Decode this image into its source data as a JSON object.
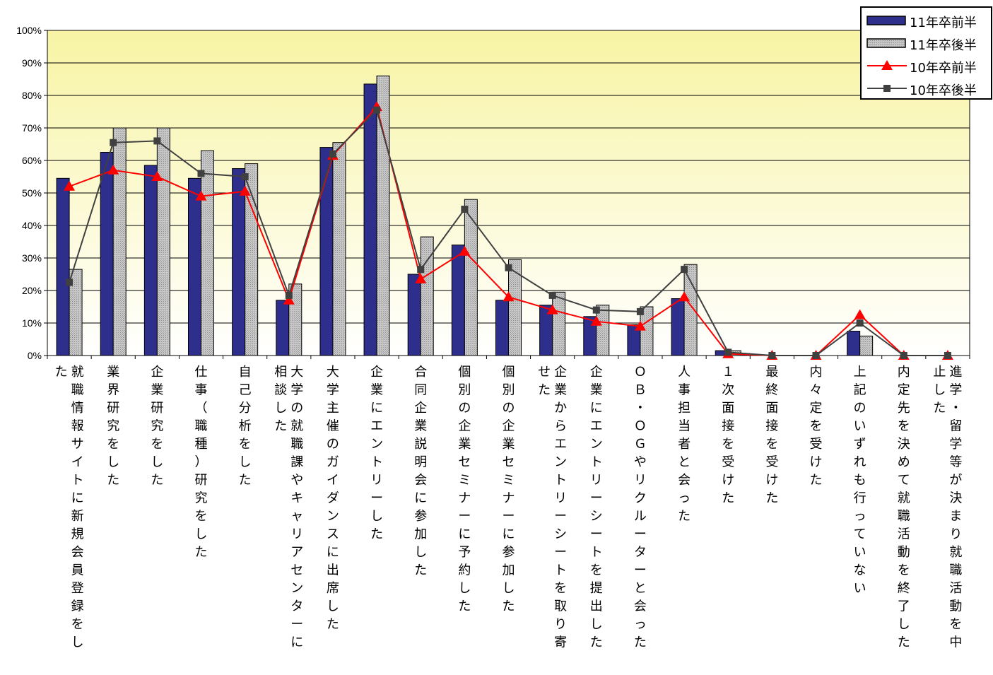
{
  "chart_data": {
    "type": "bar",
    "categories": [
      "就職情報サイトに新規会員登録をした",
      "業界研究をした",
      "企業研究をした",
      "仕事（職種）研究をした",
      "自己分析をした",
      "大学の就職課やキャリアセンターに相談した",
      "大学主催のガイダンスに出席した",
      "企業にエントリーした",
      "合同企業説明会に参加した",
      "個別の企業セミナーに予約した",
      "個別の企業セミナーに参加した",
      "企業からエントリーシートを取り寄せた",
      "企業にエントリーシートを提出した",
      "ＯＢ・ＯＧやリクルーターと会った",
      "人事担当者と会った",
      "１次面接を受けた",
      "最終面接を受けた",
      "内々定を受けた",
      "上記のいずれも行っていない",
      "内定先を決めて就職活動を終了した",
      "進学・留学等が決まり就職活動を中止した"
    ],
    "series": [
      {
        "name": "11年卒前半",
        "kind": "bar",
        "color": "#2e2e8c",
        "values": [
          54.5,
          62.5,
          58.5,
          54.5,
          57.5,
          17,
          64,
          83.5,
          25,
          34,
          17,
          15.5,
          12,
          9.5,
          17.5,
          1.5,
          0,
          0,
          7.5,
          0,
          0
        ]
      },
      {
        "name": "11年卒後半",
        "kind": "bar",
        "color": "#b4b4b4",
        "values": [
          26.5,
          70,
          70,
          63,
          59,
          22,
          65.5,
          86,
          36.5,
          48,
          29.5,
          19.5,
          15.5,
          15,
          28,
          1.5,
          0,
          0,
          6,
          0,
          0
        ]
      },
      {
        "name": "10年卒前半",
        "kind": "line",
        "color": "#ff0000",
        "marker": "triangle",
        "values": [
          52,
          57,
          55,
          49,
          50.5,
          17,
          61.5,
          76.5,
          23.5,
          32,
          18,
          14,
          10.5,
          9,
          18,
          0.5,
          0,
          0,
          12.5,
          0,
          0
        ]
      },
      {
        "name": "10年卒後半",
        "kind": "line",
        "color": "#404040",
        "marker": "square",
        "values": [
          22.5,
          65.5,
          66,
          56,
          55,
          18.5,
          62,
          75.5,
          26.5,
          45,
          27,
          18.5,
          14,
          13.5,
          26.5,
          1,
          0,
          0,
          10,
          0,
          0
        ]
      }
    ],
    "yticks": [
      "0%",
      "10%",
      "20%",
      "30%",
      "40%",
      "50%",
      "60%",
      "70%",
      "80%",
      "90%",
      "100%"
    ],
    "ylim": [
      0,
      100
    ],
    "title": "",
    "xlabel": "",
    "ylabel": "",
    "grid": true,
    "legend_position": "top-right",
    "background_gradient": [
      "#f8f4a4",
      "#ffffff"
    ]
  }
}
